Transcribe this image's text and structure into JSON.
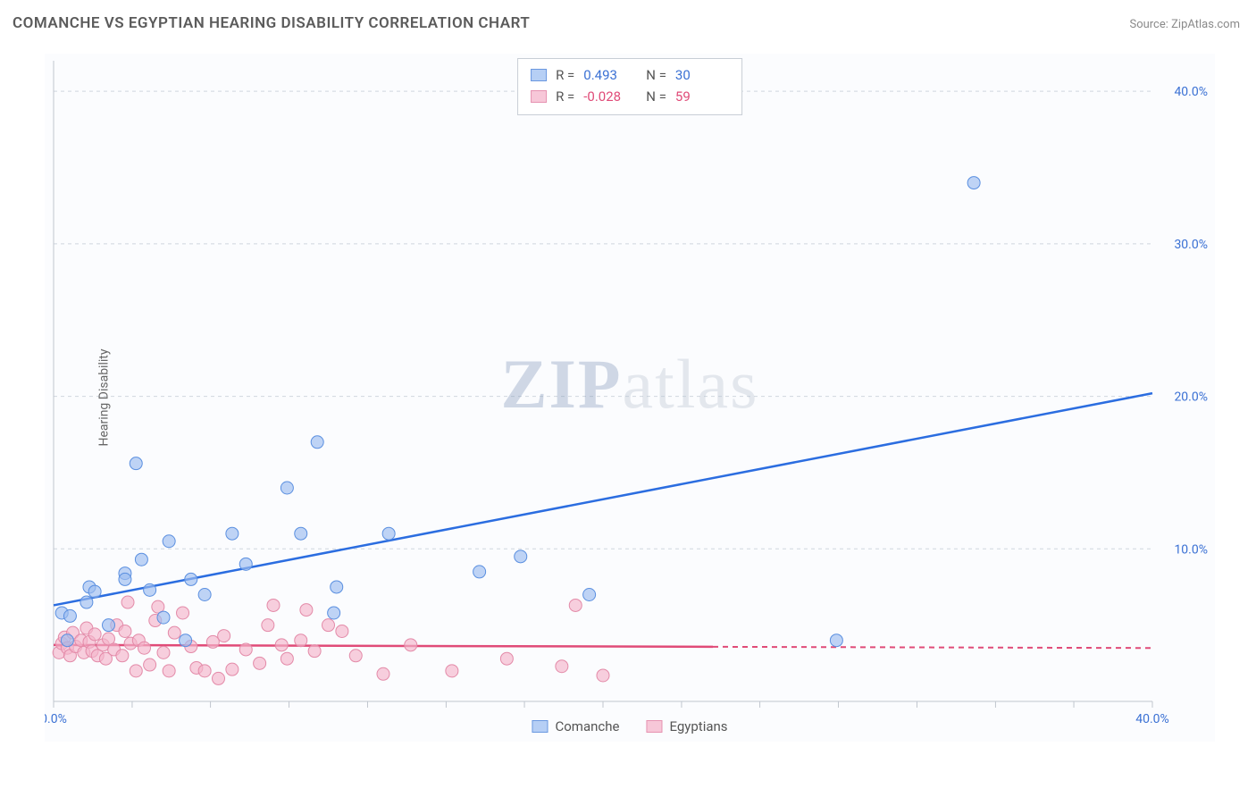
{
  "title": "COMANCHE VS EGYPTIAN HEARING DISABILITY CORRELATION CHART",
  "source_label": "Source: ZipAtlas.com",
  "y_axis_label": "Hearing Disability",
  "chart": {
    "type": "scatter",
    "background_color": "#fbfcfe",
    "grid_color": "#d0d6de",
    "xlim": [
      0,
      40
    ],
    "ylim": [
      0,
      42
    ],
    "x_ticks": [
      0,
      2.86,
      5.71,
      8.57,
      11.43,
      14.29,
      17.14,
      20,
      22.86,
      25.71,
      28.57,
      31.43,
      34.29,
      37.14,
      40
    ],
    "x_tick_labels": {
      "0": "0.0%",
      "40": "40.0%"
    },
    "y_ticks": [
      10,
      20,
      30,
      40
    ],
    "y_tick_labels": [
      "10.0%",
      "20.0%",
      "30.0%",
      "40.0%"
    ],
    "series_a": {
      "name": "Comanche",
      "color": "#9cbdf0",
      "stroke": "#5a8fe0",
      "trend_color": "#2b6de0",
      "R": "0.493",
      "N": "30",
      "trend": {
        "x1": 0,
        "y1": 6.3,
        "x2": 40,
        "y2": 20.2,
        "solid_until_x": 40
      },
      "points": [
        [
          0.3,
          5.8
        ],
        [
          0.5,
          4.0
        ],
        [
          0.6,
          5.6
        ],
        [
          1.2,
          6.5
        ],
        [
          1.3,
          7.5
        ],
        [
          1.5,
          7.2
        ],
        [
          2.0,
          5.0
        ],
        [
          2.6,
          8.4
        ],
        [
          2.6,
          8.0
        ],
        [
          3.0,
          15.6
        ],
        [
          3.2,
          9.3
        ],
        [
          3.5,
          7.3
        ],
        [
          4.0,
          5.5
        ],
        [
          4.2,
          10.5
        ],
        [
          4.8,
          4.0
        ],
        [
          5.0,
          8.0
        ],
        [
          5.5,
          7.0
        ],
        [
          6.5,
          11.0
        ],
        [
          7.0,
          9.0
        ],
        [
          8.5,
          14.0
        ],
        [
          9.0,
          11.0
        ],
        [
          9.6,
          17.0
        ],
        [
          10.2,
          5.8
        ],
        [
          10.3,
          7.5
        ],
        [
          12.2,
          11.0
        ],
        [
          15.5,
          8.5
        ],
        [
          17.0,
          9.5
        ],
        [
          19.5,
          7.0
        ],
        [
          28.5,
          4.0
        ],
        [
          33.5,
          34.0
        ]
      ]
    },
    "series_b": {
      "name": "Egyptians",
      "color": "#f5b6cb",
      "stroke": "#e38aa8",
      "trend_color": "#e04b78",
      "R": "-0.028",
      "N": "59",
      "trend": {
        "x1": 0,
        "y1": 3.7,
        "x2": 40,
        "y2": 3.5,
        "solid_until_x": 24
      },
      "points": [
        [
          0.2,
          3.2
        ],
        [
          0.3,
          3.8
        ],
        [
          0.4,
          4.2
        ],
        [
          0.5,
          3.5
        ],
        [
          0.6,
          3.0
        ],
        [
          0.7,
          4.5
        ],
        [
          0.8,
          3.6
        ],
        [
          1.0,
          4.0
        ],
        [
          1.1,
          3.2
        ],
        [
          1.2,
          4.8
        ],
        [
          1.3,
          3.9
        ],
        [
          1.4,
          3.3
        ],
        [
          1.5,
          4.4
        ],
        [
          1.6,
          3.0
        ],
        [
          1.8,
          3.7
        ],
        [
          1.9,
          2.8
        ],
        [
          2.0,
          4.1
        ],
        [
          2.2,
          3.4
        ],
        [
          2.3,
          5.0
        ],
        [
          2.5,
          3.0
        ],
        [
          2.6,
          4.6
        ],
        [
          2.7,
          6.5
        ],
        [
          2.8,
          3.8
        ],
        [
          3.0,
          2.0
        ],
        [
          3.1,
          4.0
        ],
        [
          3.3,
          3.5
        ],
        [
          3.5,
          2.4
        ],
        [
          3.7,
          5.3
        ],
        [
          3.8,
          6.2
        ],
        [
          4.0,
          3.2
        ],
        [
          4.2,
          2.0
        ],
        [
          4.4,
          4.5
        ],
        [
          4.7,
          5.8
        ],
        [
          5.0,
          3.6
        ],
        [
          5.2,
          2.2
        ],
        [
          5.5,
          2.0
        ],
        [
          5.8,
          3.9
        ],
        [
          6.0,
          1.5
        ],
        [
          6.2,
          4.3
        ],
        [
          6.5,
          2.1
        ],
        [
          7.0,
          3.4
        ],
        [
          7.5,
          2.5
        ],
        [
          7.8,
          5.0
        ],
        [
          8.0,
          6.3
        ],
        [
          8.3,
          3.7
        ],
        [
          8.5,
          2.8
        ],
        [
          9.0,
          4.0
        ],
        [
          9.2,
          6.0
        ],
        [
          9.5,
          3.3
        ],
        [
          10.0,
          5.0
        ],
        [
          10.5,
          4.6
        ],
        [
          11.0,
          3.0
        ],
        [
          12.0,
          1.8
        ],
        [
          13.0,
          3.7
        ],
        [
          14.5,
          2.0
        ],
        [
          16.5,
          2.8
        ],
        [
          18.5,
          2.3
        ],
        [
          19.0,
          6.3
        ],
        [
          20.0,
          1.7
        ]
      ]
    }
  },
  "legend": {
    "a_label": "Comanche",
    "b_label": "Egyptians"
  },
  "statbox": {
    "r_label": "R =",
    "n_label": "N ="
  },
  "watermark": {
    "big": "ZIP",
    "rest": "atlas"
  }
}
